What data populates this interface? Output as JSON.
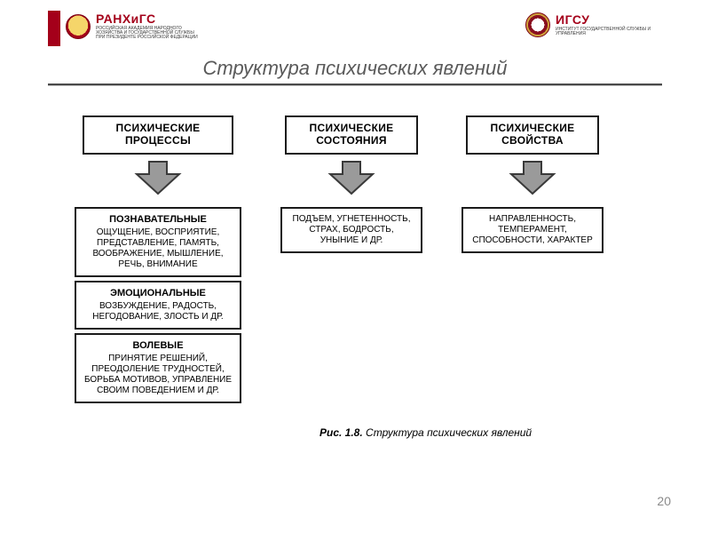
{
  "logos": {
    "left": {
      "main": "РАНХиГС",
      "sub": "РОССИЙСКАЯ АКАДЕМИЯ НАРОДНОГО ХОЗЯЙСТВА И ГОСУДАРСТВЕННОЙ СЛУЖБЫ ПРИ ПРЕЗИДЕНТЕ РОССИЙСКОЙ ФЕДЕРАЦИИ"
    },
    "right": {
      "main": "ИГСУ",
      "sub": "ИНСТИТУТ ГОСУДАРСТВЕННОЙ СЛУЖБЫ И УПРАВЛЕНИЯ"
    }
  },
  "title": "Структура психических явлений",
  "colors": {
    "accent": "#a4001a",
    "box_border": "#1a1a1a",
    "shadow": "#2a2a2a",
    "arrow_fill": "#9a9a9a",
    "arrow_outline": "#3a3a3a",
    "rule_dark": "#4a4a4a",
    "rule_light": "#bcbcbc",
    "title_color": "#5a5a5a",
    "pgnum_color": "#8a8a8a",
    "background": "#ffffff"
  },
  "typography": {
    "title_fontsize": 22,
    "header_fontsize": 12,
    "sub_fontsize": 10,
    "caption_fontsize": 12,
    "page_fontsize": 14,
    "font_family": "Arial"
  },
  "diagram": {
    "type": "flowchart",
    "columns": [
      {
        "header": "ПСИХИЧЕСКИЕ ПРОЦЕССЫ",
        "blocks": [
          {
            "title": "ПОЗНАВАТЕЛЬНЫЕ",
            "body": "ОЩУЩЕНИЕ, ВОСПРИЯТИЕ, ПРЕДСТАВЛЕНИЕ, ПАМЯТЬ, ВООБРАЖЕНИЕ, МЫШЛЕНИЕ, РЕЧЬ, ВНИМАНИЕ"
          },
          {
            "title": "ЭМОЦИОНАЛЬНЫЕ",
            "body": "ВОЗБУЖДЕНИЕ, РАДОСТЬ, НЕГОДОВАНИЕ, ЗЛОСТЬ И ДР."
          },
          {
            "title": "ВОЛЕВЫЕ",
            "body": "ПРИНЯТИЕ РЕШЕНИЙ, ПРЕОДОЛЕНИЕ ТРУДНОСТЕЙ, БОРЬБА МОТИВОВ, УПРАВЛЕНИЕ СВОИМ ПОВЕДЕНИЕМ И ДР."
          }
        ]
      },
      {
        "header": "ПСИХИЧЕСКИЕ СОСТОЯНИЯ",
        "blocks": [
          {
            "title": "",
            "body": "ПОДЪЕМ, УГНЕТЕННОСТЬ, СТРАХ, БОДРОСТЬ, УНЫНИЕ И ДР."
          }
        ]
      },
      {
        "header": "ПСИХИЧЕСКИЕ СВОЙСТВА",
        "blocks": [
          {
            "title": "",
            "body": "НАПРАВЛЕННОСТЬ, ТЕМПЕРАМЕНТ, СПОСОБНОСТИ, ХАРАКТЕР"
          }
        ]
      }
    ]
  },
  "caption": {
    "label": "Рис. 1.8.",
    "text": "Структура психических явлений"
  },
  "page_number": "20"
}
